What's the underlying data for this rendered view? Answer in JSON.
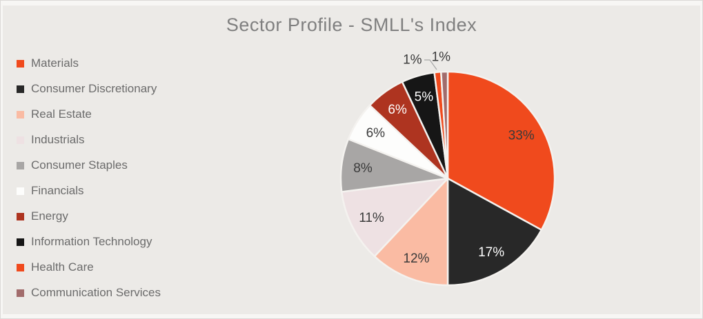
{
  "title": "Sector Profile - SMLL's Index",
  "colors": {
    "background": "#ECEAE7",
    "frame": "#F7F6F4",
    "title_text": "#7F7F7F",
    "legend_text": "#6B6B6B",
    "label_dark": "#3A3A3A",
    "label_light": "#FFFFFF",
    "leader_line": "#A6A6A6",
    "slice_border": "#F4F2EF"
  },
  "chart_data": {
    "type": "pie",
    "title": "Sector Profile - SMLL's Index",
    "categories": [
      "Materials",
      "Consumer Discretionary",
      "Real Estate",
      "Industrials",
      "Consumer Staples",
      "Financials",
      "Energy",
      "Information Technology",
      "Health Care",
      "Communication Services"
    ],
    "values": [
      33,
      17,
      12,
      11,
      8,
      6,
      6,
      5,
      1,
      1
    ],
    "unit": "%",
    "slice_colors": [
      "#F04A1D",
      "#282828",
      "#FABBA3",
      "#EEE1E3",
      "#A8A6A5",
      "#FDFDFC",
      "#AE3420",
      "#161616",
      "#F04A1D",
      "#A26C6C"
    ],
    "data_labels": [
      "33%",
      "17%",
      "12%",
      "11%",
      "8%",
      "6%",
      "6%",
      "5%",
      "1%",
      "1%"
    ],
    "label_placement": [
      "inside",
      "inside",
      "inside",
      "inside",
      "inside",
      "inside",
      "inside",
      "inside",
      "outside",
      "outside"
    ],
    "label_style": [
      "dark",
      "light",
      "dark",
      "dark",
      "dark",
      "dark",
      "light",
      "light",
      "dark",
      "dark"
    ],
    "legend_position": "left",
    "start_angle_deg": 0,
    "direction": "clockwise",
    "grid": false
  }
}
